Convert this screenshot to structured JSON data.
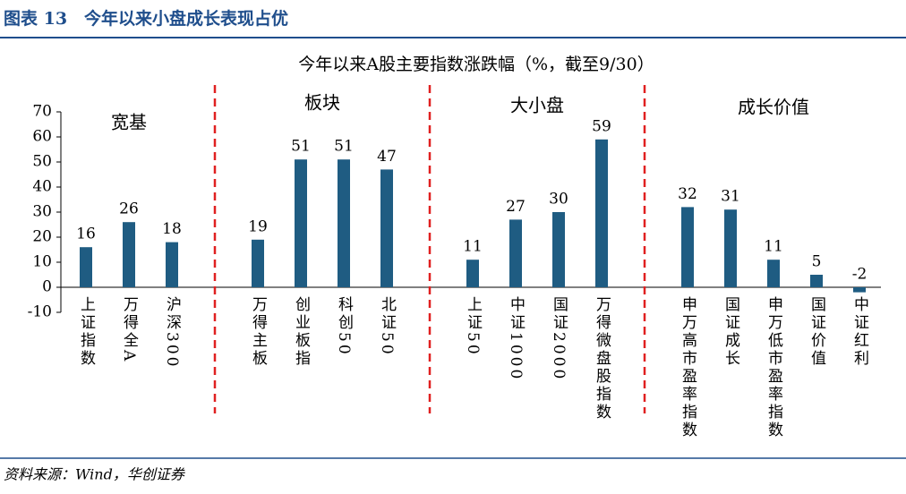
{
  "header": {
    "title": "图表 13　今年以来小盘成长表现占优"
  },
  "chart_data": {
    "type": "bar",
    "title": "今年以来A股主要指数涨跌幅（%，截至9/30）",
    "annotations": [
      "宽基",
      "板块",
      "大小盘",
      "成长价值"
    ],
    "categories": [
      "上证指数",
      "万得全A",
      "沪深300",
      "万得主板",
      "创业板指",
      "科创50",
      "北证50",
      "上证50",
      "中证1000",
      "国证2000",
      "万得微盘股指数",
      "申万高市盈率指数",
      "国证成长",
      "申万低市盈率指数",
      "国证价值",
      "中证红利"
    ],
    "values": [
      16,
      26,
      18,
      19,
      51,
      51,
      47,
      11,
      27,
      30,
      59,
      32,
      31,
      11,
      5,
      -2
    ],
    "color": "#1f5c82",
    "ylim": [
      -10,
      70
    ],
    "yticks": [
      -10,
      0,
      10,
      20,
      30,
      40,
      50,
      60,
      70
    ]
  },
  "footer": {
    "source": "资料来源：Wind，华创证券"
  }
}
